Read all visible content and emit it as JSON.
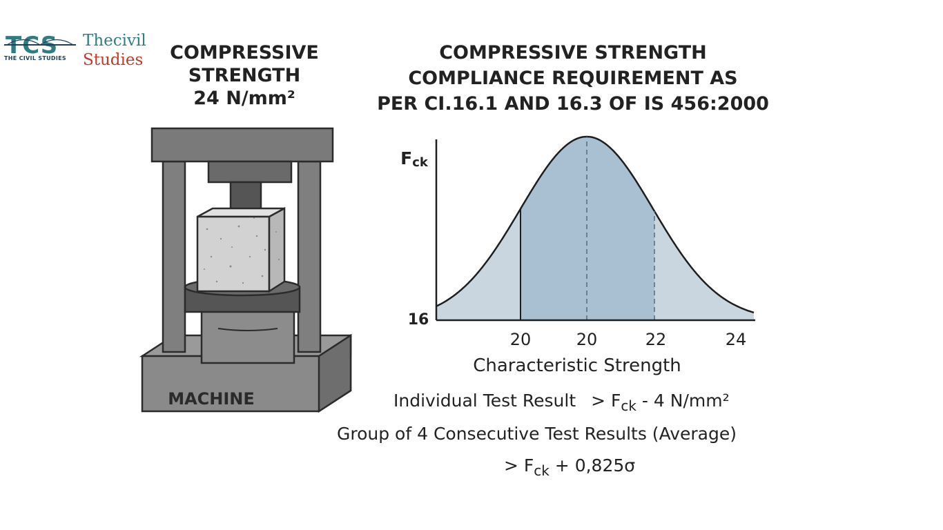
{
  "logo": {
    "mark": "TCS",
    "tagline": "THE CIVIL STUDIES",
    "word1": "Thecivil",
    "word2": "Studies",
    "colors": {
      "teal": "#2f7c83",
      "red": "#c0392b"
    }
  },
  "left_title": {
    "line1": "COMPRESSIVE",
    "line2": "STRENGTH",
    "line3": "24 N/mm²"
  },
  "machine": {
    "label": "MACHINE",
    "colors": {
      "body": "#7a7a7a",
      "dark": "#4a4a4a",
      "specimen": "#d0d0d0"
    }
  },
  "right_title": {
    "line1": "COMPRESSIVE STRENGTH",
    "line2": "COMPLIANCE REQUIREMENT AS",
    "line3": "PER CI.16.1 AND 16.3 OF IS 456:2000"
  },
  "chart_data": {
    "type": "area",
    "title": "",
    "xlabel": "Characteristic Strength",
    "ylabel": "Fck",
    "y_tick_label": "16",
    "x_tick_labels": [
      "20",
      "20",
      "22",
      "24"
    ],
    "curve": "normal distribution (bell curve)",
    "markers": [
      {
        "label": "20",
        "style": "solid"
      },
      {
        "label": "20",
        "style": "dashed",
        "role": "mean"
      },
      {
        "label": "22",
        "style": "dashed"
      }
    ],
    "colors": {
      "fill": "#a9c0d3",
      "tail_fill": "#c9d6e0",
      "line": "#1e1e1e"
    },
    "grid": false
  },
  "rules": {
    "individual_label": "Individual Test Result",
    "individual_value_pre": "> F",
    "individual_value_sub": "ck",
    "individual_value_post": " - 4 N/mm²",
    "group_label": "Group of 4 Consecutive Test Results (Average)",
    "group_value_pre": "> F",
    "group_value_sub": "ck",
    "group_value_post": " + 0,825σ"
  }
}
